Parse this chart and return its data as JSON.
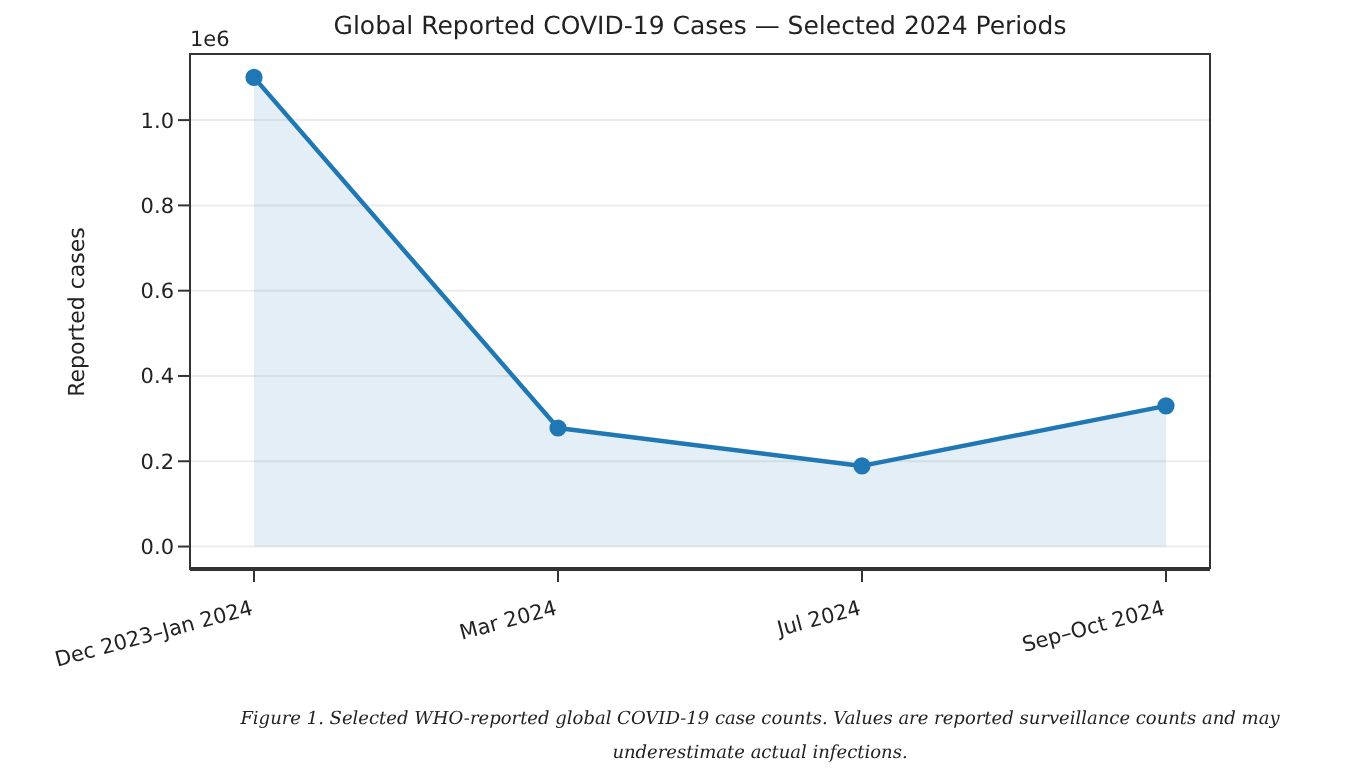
{
  "chart_data": {
    "type": "area",
    "title": "Global Reported COVID-19 Cases — Selected 2024 Periods",
    "ylabel": "Reported cases",
    "categories": [
      "Dec 2023–Jan 2024",
      "Mar 2024",
      "Jul 2024",
      "Sep–Oct 2024"
    ],
    "series": [
      {
        "color": "#1f77b4",
        "values": [
          1.1,
          0.278,
          0.189,
          0.33
        ]
      }
    ],
    "ylim": [
      -0.055,
      1.155
    ],
    "yticks": [
      {
        "value": 0,
        "label": "0.0"
      },
      0.2,
      0.4,
      0.6,
      0.8,
      {
        "value": 1,
        "label": "1.0"
      }
    ],
    "annotations": [
      "1e6",
      "Figure 1. Selected WHO-reported global COVID-19 case counts. Values are reported surveillance counts and may underestimate actual infections."
    ],
    "grid": "y",
    "marker": "circle",
    "legend": false
  }
}
